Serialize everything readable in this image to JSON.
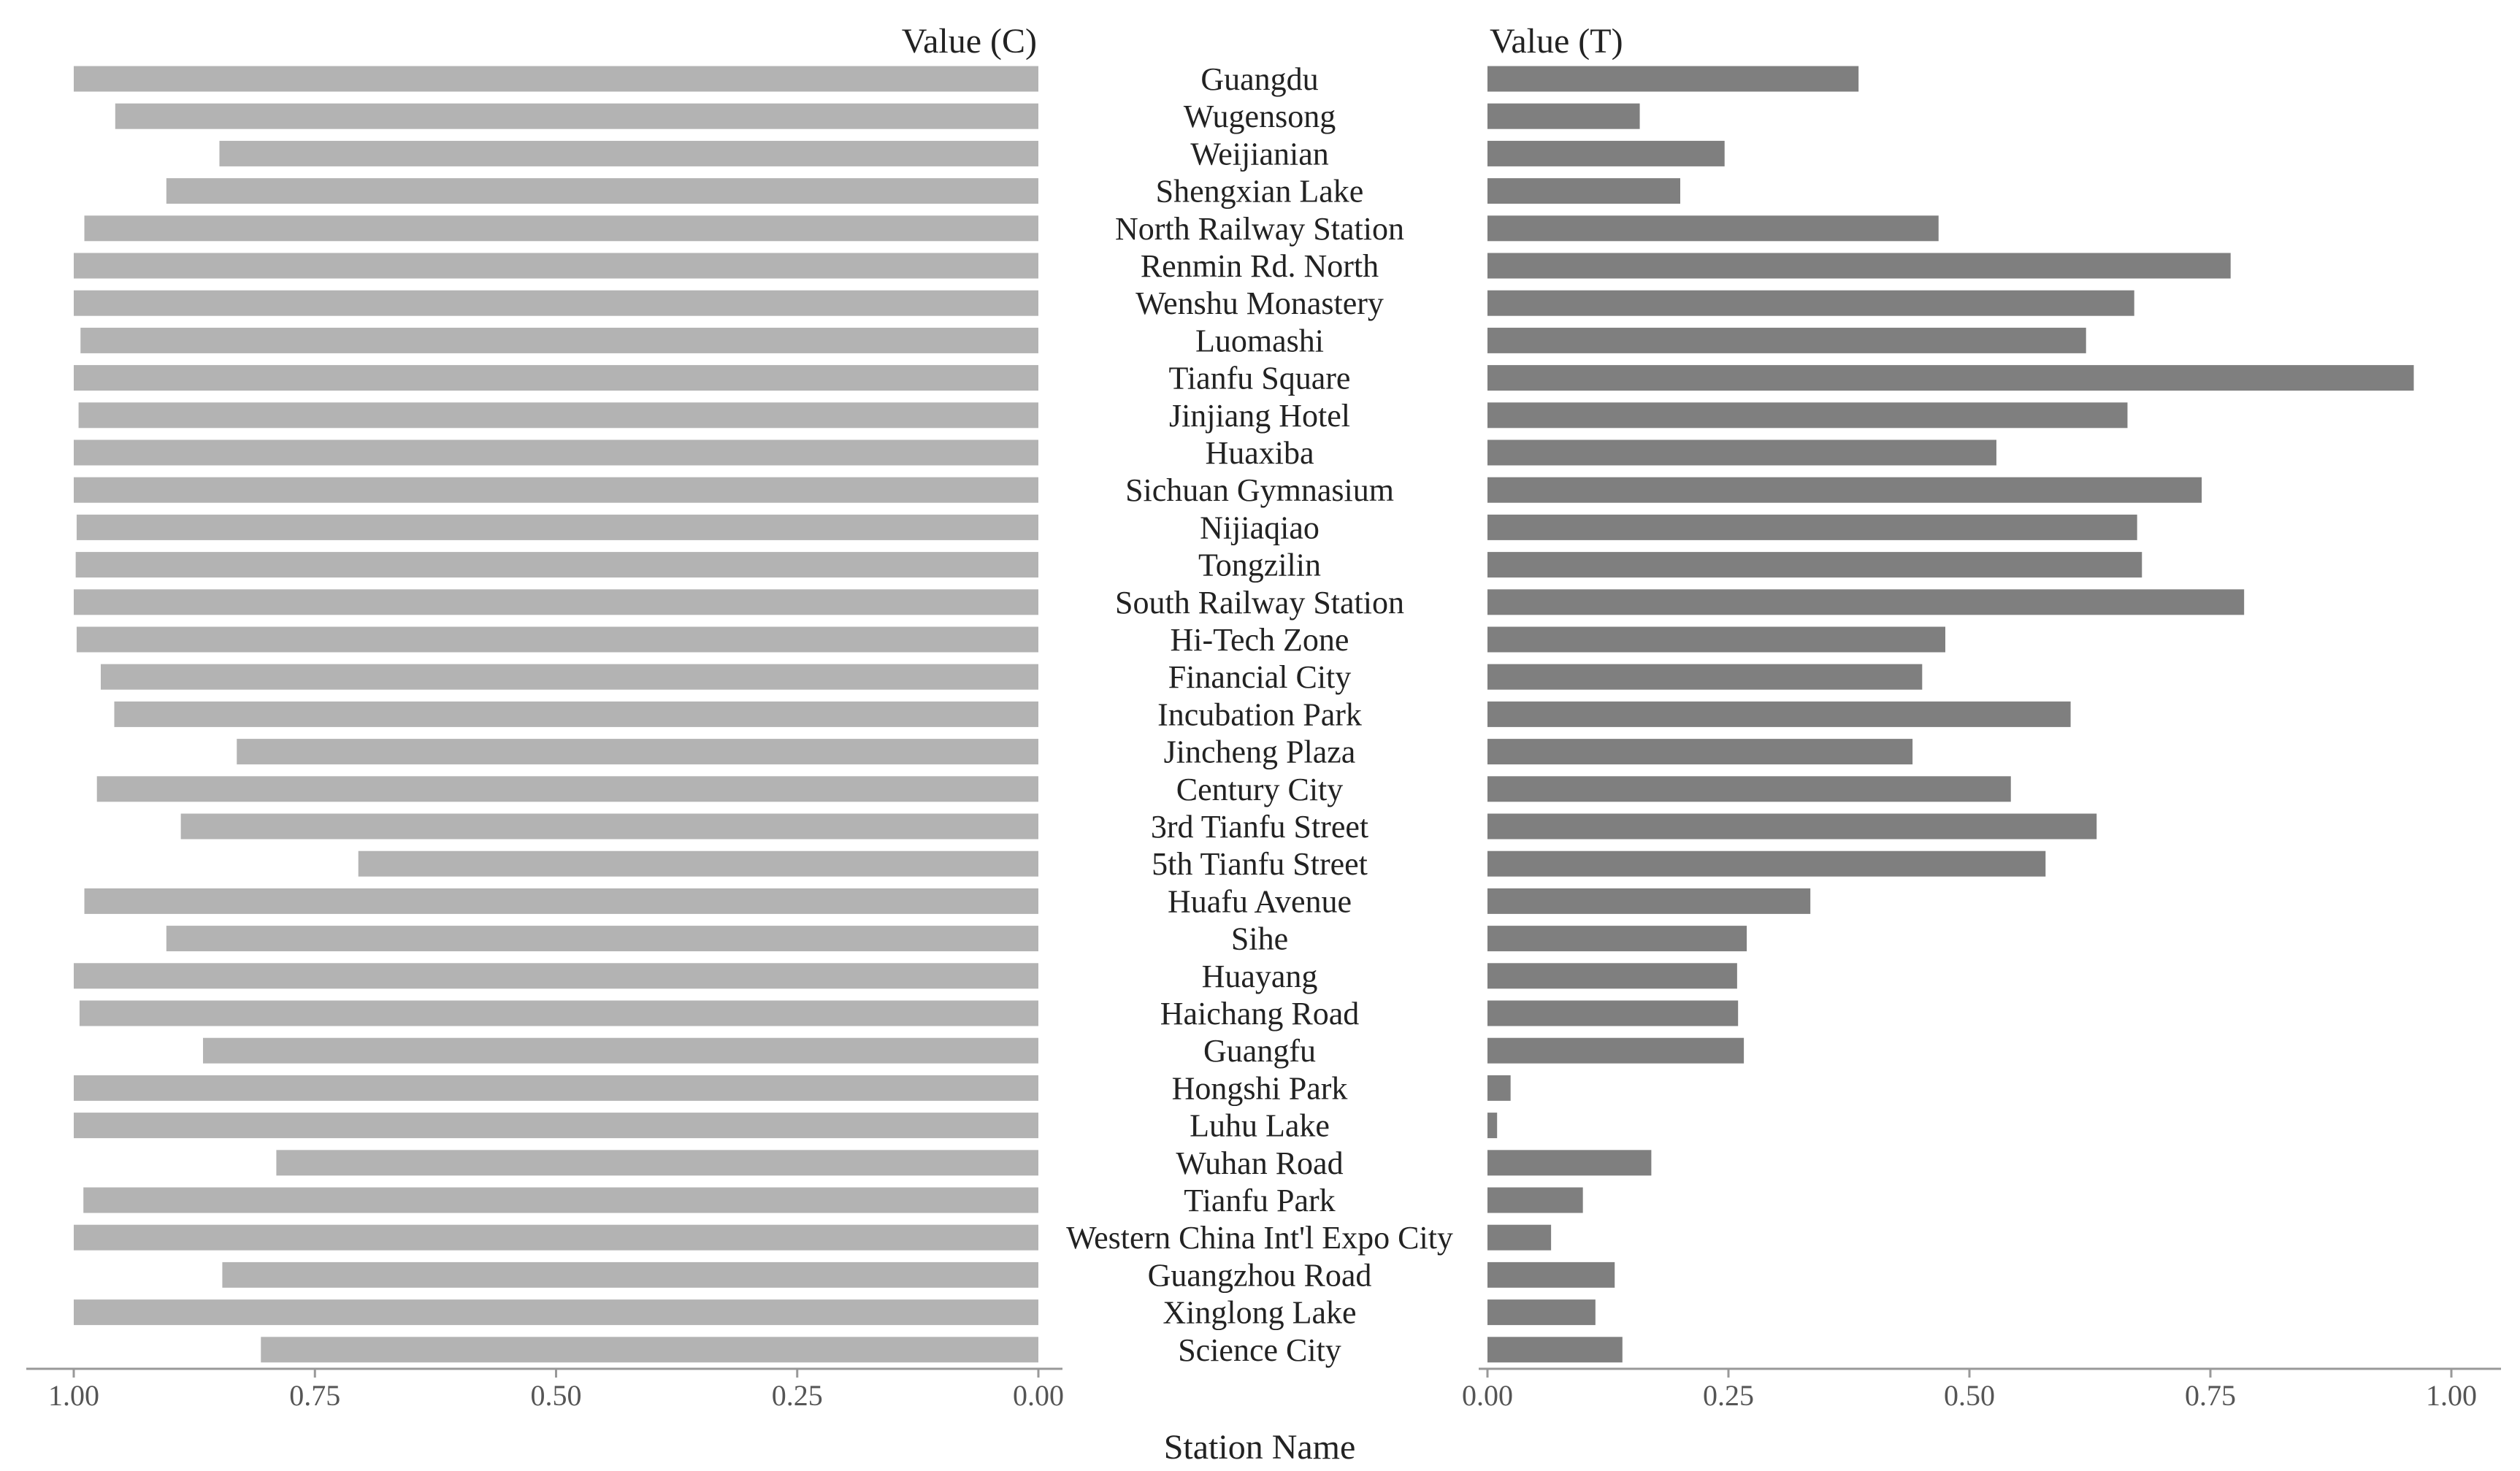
{
  "chart_data": {
    "type": "bar",
    "orientation": "horizontal",
    "layout": "mirrored",
    "xlabel": "Station Name",
    "panels": [
      {
        "name": "Value (C)",
        "direction": "left",
        "xlim": [
          0,
          1
        ],
        "color": "#b3b3b3"
      },
      {
        "name": "Value (T)",
        "direction": "right",
        "xlim": [
          0,
          1
        ],
        "color": "#7f7f7f"
      }
    ],
    "tick_values": [
      1.0,
      0.75,
      0.5,
      0.25,
      0.0
    ],
    "left_ticks": [
      "1.00",
      "0.75",
      "0.50",
      "0.25",
      "0.00"
    ],
    "right_ticks": [
      "0.00",
      "0.25",
      "0.50",
      "0.75",
      "1.00"
    ],
    "categories": [
      "Guangdu",
      "Wugensong",
      "Weijianian",
      "Shengxian Lake",
      "North Railway Station",
      "Renmin Rd. North",
      "Wenshu Monastery",
      "Luomashi",
      "Tianfu Square",
      "Jinjiang Hotel",
      "Huaxiba",
      "Sichuan Gymnasium",
      "Nijiaqiao",
      "Tongzilin",
      "South Railway Station",
      "Hi-Tech Zone",
      "Financial City",
      "Incubation Park",
      "Jincheng Plaza",
      "Century City",
      "3rd Tianfu Street",
      "5th Tianfu Street",
      "Huafu Avenue",
      "Sihe",
      "Huayang",
      "Haichang Road",
      "Guangfu",
      "Hongshi Park",
      "Luhu Lake",
      "Wuhan Road",
      "Tianfu Park",
      "Western China Int'l Expo City",
      "Guangzhou Road",
      "Xinglong Lake",
      "Science City"
    ],
    "series": [
      {
        "name": "Value (C)",
        "values": [
          1.0,
          0.957,
          0.849,
          0.904,
          0.989,
          1.0,
          1.0,
          0.993,
          1.0,
          0.995,
          1.0,
          1.0,
          0.997,
          0.998,
          1.0,
          0.997,
          0.972,
          0.958,
          0.831,
          0.976,
          0.889,
          0.705,
          0.989,
          0.904,
          1.0,
          0.994,
          0.866,
          1.0,
          1.0,
          0.79,
          0.99,
          1.0,
          0.846,
          1.0,
          0.806
        ]
      },
      {
        "name": "Value (T)",
        "values": [
          0.385,
          0.158,
          0.246,
          0.2,
          0.468,
          0.771,
          0.671,
          0.621,
          0.961,
          0.664,
          0.528,
          0.741,
          0.674,
          0.679,
          0.785,
          0.475,
          0.451,
          0.605,
          0.441,
          0.543,
          0.632,
          0.579,
          0.335,
          0.269,
          0.259,
          0.26,
          0.266,
          0.024,
          0.01,
          0.17,
          0.099,
          0.066,
          0.132,
          0.112,
          0.14
        ]
      }
    ]
  }
}
